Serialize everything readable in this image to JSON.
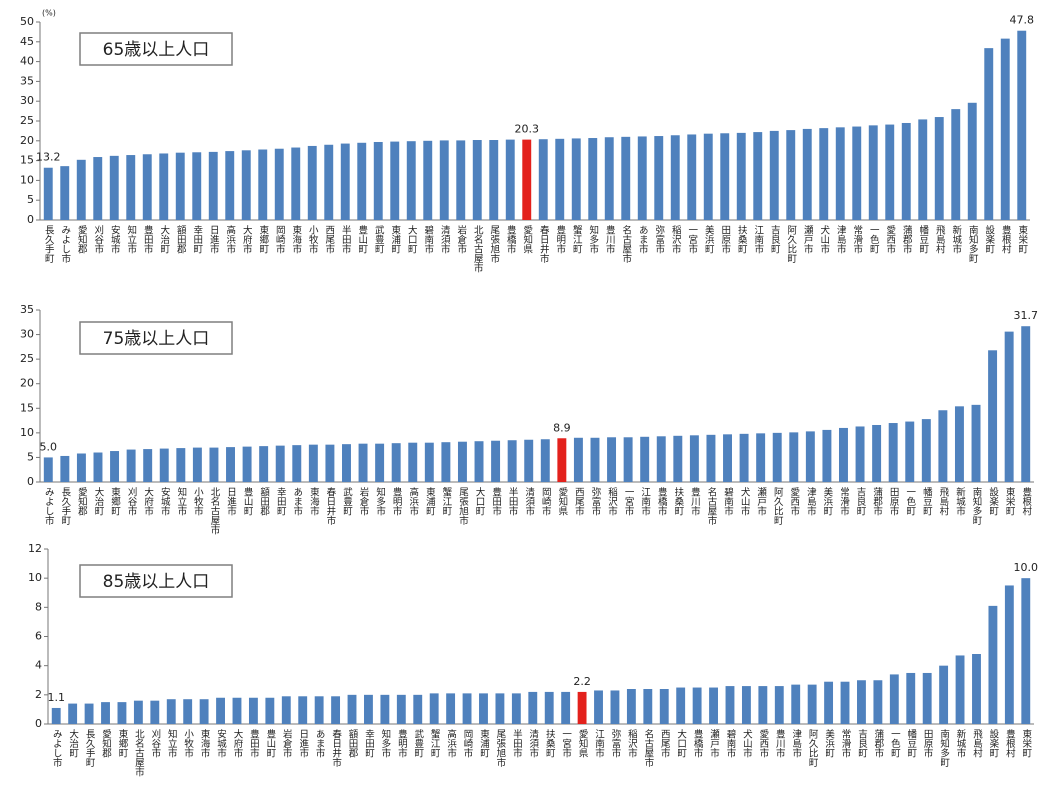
{
  "chart_data": [
    {
      "type": "bar",
      "title": "65歳以上人口",
      "y_unit": "(%)",
      "color": "#4f81bd",
      "highlight_category": "愛知県",
      "highlight_color": "#e3211c",
      "grid": false,
      "ylim": [
        0,
        50
      ],
      "yticks": [
        0,
        5,
        10,
        15,
        20,
        25,
        30,
        35,
        40,
        45,
        50
      ],
      "categories": [
        "長久手町",
        "みよし市",
        "愛知郡",
        "刈谷市",
        "安城市",
        "知立市",
        "豊田市",
        "大治町",
        "額田郡",
        "幸田町",
        "日進市",
        "高浜市",
        "大府市",
        "東郷町",
        "岡崎市",
        "東海市",
        "小牧市",
        "西尾市",
        "半田市",
        "豊山町",
        "武豊町",
        "東浦町",
        "大口町",
        "碧南市",
        "清須市",
        "岩倉市",
        "北名古屋市",
        "尾張旭市",
        "豊橋市",
        "愛知県",
        "春日井市",
        "豊明市",
        "蟹江町",
        "知多市",
        "豊川市",
        "名古屋市",
        "あま市",
        "弥富市",
        "稲沢市",
        "一宮市",
        "美浜町",
        "田原市",
        "扶桑町",
        "江南市",
        "吉良町",
        "阿久比町",
        "瀬戸市",
        "犬山市",
        "津島市",
        "常滑市",
        "一色町",
        "愛西市",
        "蒲郡市",
        "幡豆町",
        "飛島村",
        "新城市",
        "南知多町",
        "設楽町",
        "豊根村",
        "東栄町"
      ],
      "values": [
        13.2,
        13.6,
        15.2,
        15.9,
        16.2,
        16.4,
        16.6,
        16.8,
        17.0,
        17.1,
        17.2,
        17.4,
        17.6,
        17.8,
        18.0,
        18.3,
        18.7,
        19.0,
        19.3,
        19.5,
        19.7,
        19.8,
        19.9,
        20.0,
        20.1,
        20.1,
        20.2,
        20.2,
        20.3,
        20.3,
        20.4,
        20.5,
        20.6,
        20.7,
        20.9,
        21.0,
        21.1,
        21.2,
        21.4,
        21.6,
        21.8,
        21.9,
        22.0,
        22.2,
        22.5,
        22.7,
        23.0,
        23.2,
        23.4,
        23.6,
        23.9,
        24.1,
        24.5,
        25.4,
        26.0,
        28.0,
        29.6,
        43.4,
        45.8,
        47.8
      ],
      "value_labels": [
        "13.2",
        null,
        null,
        null,
        null,
        null,
        null,
        null,
        null,
        null,
        null,
        null,
        null,
        null,
        null,
        null,
        null,
        null,
        null,
        null,
        null,
        null,
        null,
        null,
        null,
        null,
        null,
        null,
        null,
        "20.3",
        null,
        null,
        null,
        null,
        null,
        null,
        null,
        null,
        null,
        null,
        null,
        null,
        null,
        null,
        null,
        null,
        null,
        null,
        null,
        null,
        null,
        null,
        null,
        null,
        null,
        null,
        null,
        null,
        null,
        "47.8"
      ]
    },
    {
      "type": "bar",
      "title": "75歳以上人口",
      "color": "#4f81bd",
      "highlight_category": "愛知県",
      "highlight_color": "#e3211c",
      "grid": false,
      "ylim": [
        0,
        35
      ],
      "yticks": [
        0,
        5,
        10,
        15,
        20,
        25,
        30,
        35
      ],
      "categories": [
        "みよし市",
        "長久手町",
        "愛知郡",
        "大治町",
        "東郷町",
        "刈谷市",
        "大府市",
        "安城市",
        "知立市",
        "小牧市",
        "北名古屋市",
        "日進市",
        "豊山町",
        "額田郡",
        "幸田町",
        "あま市",
        "東海市",
        "春日井市",
        "武豊町",
        "岩倉市",
        "知多市",
        "豊明市",
        "高浜市",
        "東浦町",
        "蟹江町",
        "尾張旭市",
        "大口町",
        "豊田市",
        "半田市",
        "清須市",
        "岡崎市",
        "愛知県",
        "西尾市",
        "弥富市",
        "稲沢市",
        "一宮市",
        "江南市",
        "豊橋市",
        "扶桑町",
        "豊川市",
        "名古屋市",
        "碧南市",
        "犬山市",
        "瀬戸市",
        "阿久比町",
        "愛西市",
        "津島市",
        "美浜町",
        "常滑市",
        "吉良町",
        "蒲郡市",
        "田原市",
        "一色町",
        "幡豆町",
        "飛島村",
        "新城市",
        "南知多町",
        "設楽町",
        "東栄町",
        "豊根村"
      ],
      "values": [
        5.0,
        5.3,
        5.8,
        6.0,
        6.3,
        6.6,
        6.7,
        6.8,
        6.9,
        7.0,
        7.0,
        7.1,
        7.2,
        7.3,
        7.4,
        7.5,
        7.6,
        7.6,
        7.7,
        7.8,
        7.8,
        7.9,
        8.0,
        8.0,
        8.1,
        8.2,
        8.3,
        8.4,
        8.5,
        8.6,
        8.7,
        8.9,
        9.0,
        9.0,
        9.1,
        9.1,
        9.2,
        9.3,
        9.4,
        9.5,
        9.6,
        9.7,
        9.8,
        9.9,
        10.0,
        10.1,
        10.3,
        10.6,
        11.0,
        11.3,
        11.6,
        12.0,
        12.3,
        12.8,
        14.6,
        15.4,
        15.7,
        26.8,
        30.6,
        31.7
      ],
      "value_labels": [
        "5.0",
        null,
        null,
        null,
        null,
        null,
        null,
        null,
        null,
        null,
        null,
        null,
        null,
        null,
        null,
        null,
        null,
        null,
        null,
        null,
        null,
        null,
        null,
        null,
        null,
        null,
        null,
        null,
        null,
        null,
        null,
        "8.9",
        null,
        null,
        null,
        null,
        null,
        null,
        null,
        null,
        null,
        null,
        null,
        null,
        null,
        null,
        null,
        null,
        null,
        null,
        null,
        null,
        null,
        null,
        null,
        null,
        null,
        null,
        null,
        "31.7"
      ]
    },
    {
      "type": "bar",
      "title": "85歳以上人口",
      "color": "#4f81bd",
      "highlight_category": "愛知県",
      "highlight_color": "#e3211c",
      "grid": false,
      "ylim": [
        0,
        12
      ],
      "yticks": [
        0,
        2,
        4,
        6,
        8,
        10,
        12
      ],
      "categories": [
        "みよし市",
        "大治町",
        "長久手町",
        "愛知郡",
        "東郷町",
        "北名古屋市",
        "刈谷市",
        "知立市",
        "小牧市",
        "東海市",
        "安城市",
        "大府市",
        "豊田市",
        "豊山町",
        "岩倉市",
        "日進市",
        "あま市",
        "春日井市",
        "額田郡",
        "幸田町",
        "知多市",
        "豊明市",
        "武豊町",
        "蟹江町",
        "高浜市",
        "岡崎市",
        "東浦町",
        "尾張旭市",
        "半田市",
        "清須市",
        "扶桑町",
        "一宮市",
        "愛知県",
        "江南市",
        "弥富市",
        "稲沢市",
        "名古屋市",
        "西尾市",
        "大口町",
        "豊橋市",
        "瀬戸市",
        "碧南市",
        "犬山市",
        "愛西市",
        "豊川市",
        "津島市",
        "阿久比町",
        "美浜町",
        "常滑市",
        "吉良町",
        "蒲郡市",
        "一色町",
        "幡豆町",
        "田原市",
        "南知多町",
        "新城市",
        "飛島村",
        "設楽町",
        "豊根村",
        "東栄町"
      ],
      "values": [
        1.1,
        1.4,
        1.4,
        1.5,
        1.5,
        1.6,
        1.6,
        1.7,
        1.7,
        1.7,
        1.8,
        1.8,
        1.8,
        1.8,
        1.9,
        1.9,
        1.9,
        1.9,
        2.0,
        2.0,
        2.0,
        2.0,
        2.0,
        2.1,
        2.1,
        2.1,
        2.1,
        2.1,
        2.1,
        2.2,
        2.2,
        2.2,
        2.2,
        2.3,
        2.3,
        2.4,
        2.4,
        2.4,
        2.5,
        2.5,
        2.5,
        2.6,
        2.6,
        2.6,
        2.6,
        2.7,
        2.7,
        2.9,
        2.9,
        3.0,
        3.0,
        3.4,
        3.5,
        3.5,
        4.0,
        4.7,
        4.8,
        8.1,
        9.5,
        10.0
      ],
      "value_labels": [
        "1.1",
        null,
        null,
        null,
        null,
        null,
        null,
        null,
        null,
        null,
        null,
        null,
        null,
        null,
        null,
        null,
        null,
        null,
        null,
        null,
        null,
        null,
        null,
        null,
        null,
        null,
        null,
        null,
        null,
        null,
        null,
        null,
        "2.2",
        null,
        null,
        null,
        null,
        null,
        null,
        null,
        null,
        null,
        null,
        null,
        null,
        null,
        null,
        null,
        null,
        null,
        null,
        null,
        null,
        null,
        null,
        null,
        null,
        null,
        null,
        "10.0"
      ]
    }
  ]
}
